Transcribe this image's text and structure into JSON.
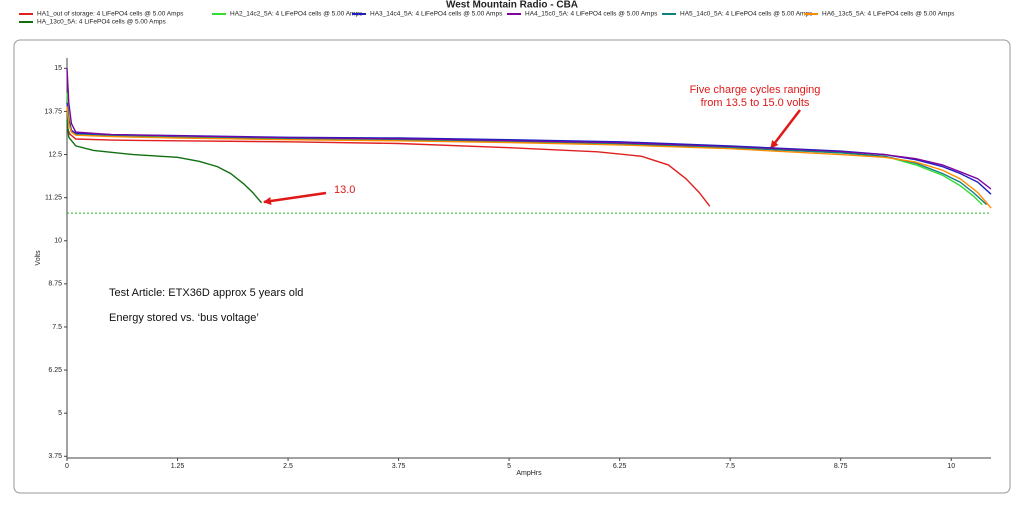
{
  "chart_data": {
    "type": "line",
    "title": "West Mountain Radio - CBA",
    "x_label": "AmpHrs",
    "y_label": "Volts",
    "xlim": [
      0,
      10.45
    ],
    "ylim": [
      3.7,
      15.3
    ],
    "xticks": [
      0,
      1.25,
      2.5,
      3.75,
      5,
      6.25,
      7.5,
      8.75,
      10
    ],
    "yticks": [
      3.75,
      5,
      6.25,
      7.5,
      8.75,
      10,
      11.25,
      12.5,
      13.75,
      15
    ],
    "reference_line": {
      "value": 10.8,
      "color": "#22bb22"
    },
    "annotations": [
      "Five charge cycles ranging",
      "from 13.5 to 15.0 volts",
      "13.0",
      "Test Article: ETX36D approx 5 years old",
      "Energy stored vs. ‘bus voltage’"
    ],
    "series": [
      {
        "name": "HA1_out of storage: 4 LiFePO4 cells @ 5.00 Amps",
        "color": "#e02020",
        "x": [
          0,
          0.03,
          0.1,
          0.5,
          1.25,
          2.5,
          3.75,
          5,
          6,
          6.5,
          6.8,
          7,
          7.15,
          7.27
        ],
        "values": [
          13.3,
          13.1,
          12.95,
          12.92,
          12.9,
          12.87,
          12.82,
          12.7,
          12.58,
          12.45,
          12.2,
          11.8,
          11.4,
          11.0
        ]
      },
      {
        "name": "HA2_14c2_5A: 4 LiFePO4 cells @ 5.00 Amps",
        "color": "#33dd33",
        "x": [
          0,
          0.02,
          0.05,
          0.1,
          0.5,
          1.25,
          2.5,
          3.75,
          5,
          6.25,
          7.5,
          8.75,
          9.25,
          9.6,
          9.9,
          10.1,
          10.25,
          10.35
        ],
        "values": [
          14.3,
          13.6,
          13.2,
          13.1,
          13.05,
          13.0,
          12.95,
          12.93,
          12.88,
          12.82,
          12.72,
          12.55,
          12.45,
          12.2,
          11.9,
          11.6,
          11.3,
          11.05
        ]
      },
      {
        "name": "HA3_14c4_5A: 4 LiFePO4 cells @ 5.00 Amps",
        "color": "#2020c0",
        "x": [
          0,
          0.02,
          0.05,
          0.1,
          0.5,
          1.25,
          2.5,
          3.75,
          5,
          6.25,
          7.5,
          8.75,
          9.25,
          9.6,
          9.9,
          10.1,
          10.3,
          10.45
        ],
        "values": [
          14.0,
          13.5,
          13.2,
          13.12,
          13.08,
          13.05,
          13.0,
          12.98,
          12.93,
          12.87,
          12.75,
          12.6,
          12.5,
          12.35,
          12.15,
          11.95,
          11.7,
          11.35
        ]
      },
      {
        "name": "HA4_15c0_5A: 4 LiFePO4 cells @ 5.00 Amps",
        "color": "#8000a0",
        "x": [
          0,
          0.02,
          0.05,
          0.1,
          0.5,
          1.25,
          2.5,
          3.75,
          5,
          6.25,
          7.5,
          8.75,
          9.25,
          9.6,
          9.9,
          10.1,
          10.3,
          10.45
        ],
        "values": [
          15.0,
          14.0,
          13.4,
          13.15,
          13.08,
          13.04,
          12.98,
          12.95,
          12.9,
          12.84,
          12.72,
          12.58,
          12.5,
          12.38,
          12.2,
          12.0,
          11.8,
          11.5
        ]
      },
      {
        "name": "HA5_14c0_5A: 4 LiFePO4 cells @ 5.00 Amps",
        "color": "#108080",
        "x": [
          0,
          0.02,
          0.05,
          0.1,
          0.5,
          1.25,
          2.5,
          3.75,
          5,
          6.25,
          7.5,
          8.75,
          9.25,
          9.6,
          9.9,
          10.1,
          10.25,
          10.4
        ],
        "values": [
          13.8,
          13.4,
          13.15,
          13.08,
          13.04,
          13.0,
          12.95,
          12.92,
          12.87,
          12.8,
          12.7,
          12.55,
          12.45,
          12.25,
          11.95,
          11.7,
          11.4,
          11.05
        ]
      },
      {
        "name": "HA6_13c5_5A: 4 LiFePO4 cells @ 5.00 Amps",
        "color": "#ff8c00",
        "x": [
          0,
          0.02,
          0.05,
          0.1,
          0.5,
          1.25,
          2.5,
          3.75,
          5,
          6.25,
          7.5,
          8.75,
          9.25,
          9.6,
          9.9,
          10.1,
          10.3,
          10.45
        ],
        "values": [
          13.9,
          13.4,
          13.15,
          13.06,
          13.02,
          12.98,
          12.93,
          12.9,
          12.85,
          12.78,
          12.67,
          12.5,
          12.42,
          12.28,
          12.05,
          11.8,
          11.4,
          10.95
        ]
      },
      {
        "name": "HA_13c0_5A: 4 LiFePO4 cells @ 5.00 Amps",
        "color": "#107010",
        "x": [
          0,
          0.02,
          0.1,
          0.3,
          0.75,
          1.25,
          1.5,
          1.7,
          1.85,
          2.0,
          2.1,
          2.2
        ],
        "values": [
          13.5,
          13.0,
          12.75,
          12.62,
          12.5,
          12.42,
          12.3,
          12.15,
          11.95,
          11.65,
          11.4,
          11.1
        ]
      }
    ]
  }
}
